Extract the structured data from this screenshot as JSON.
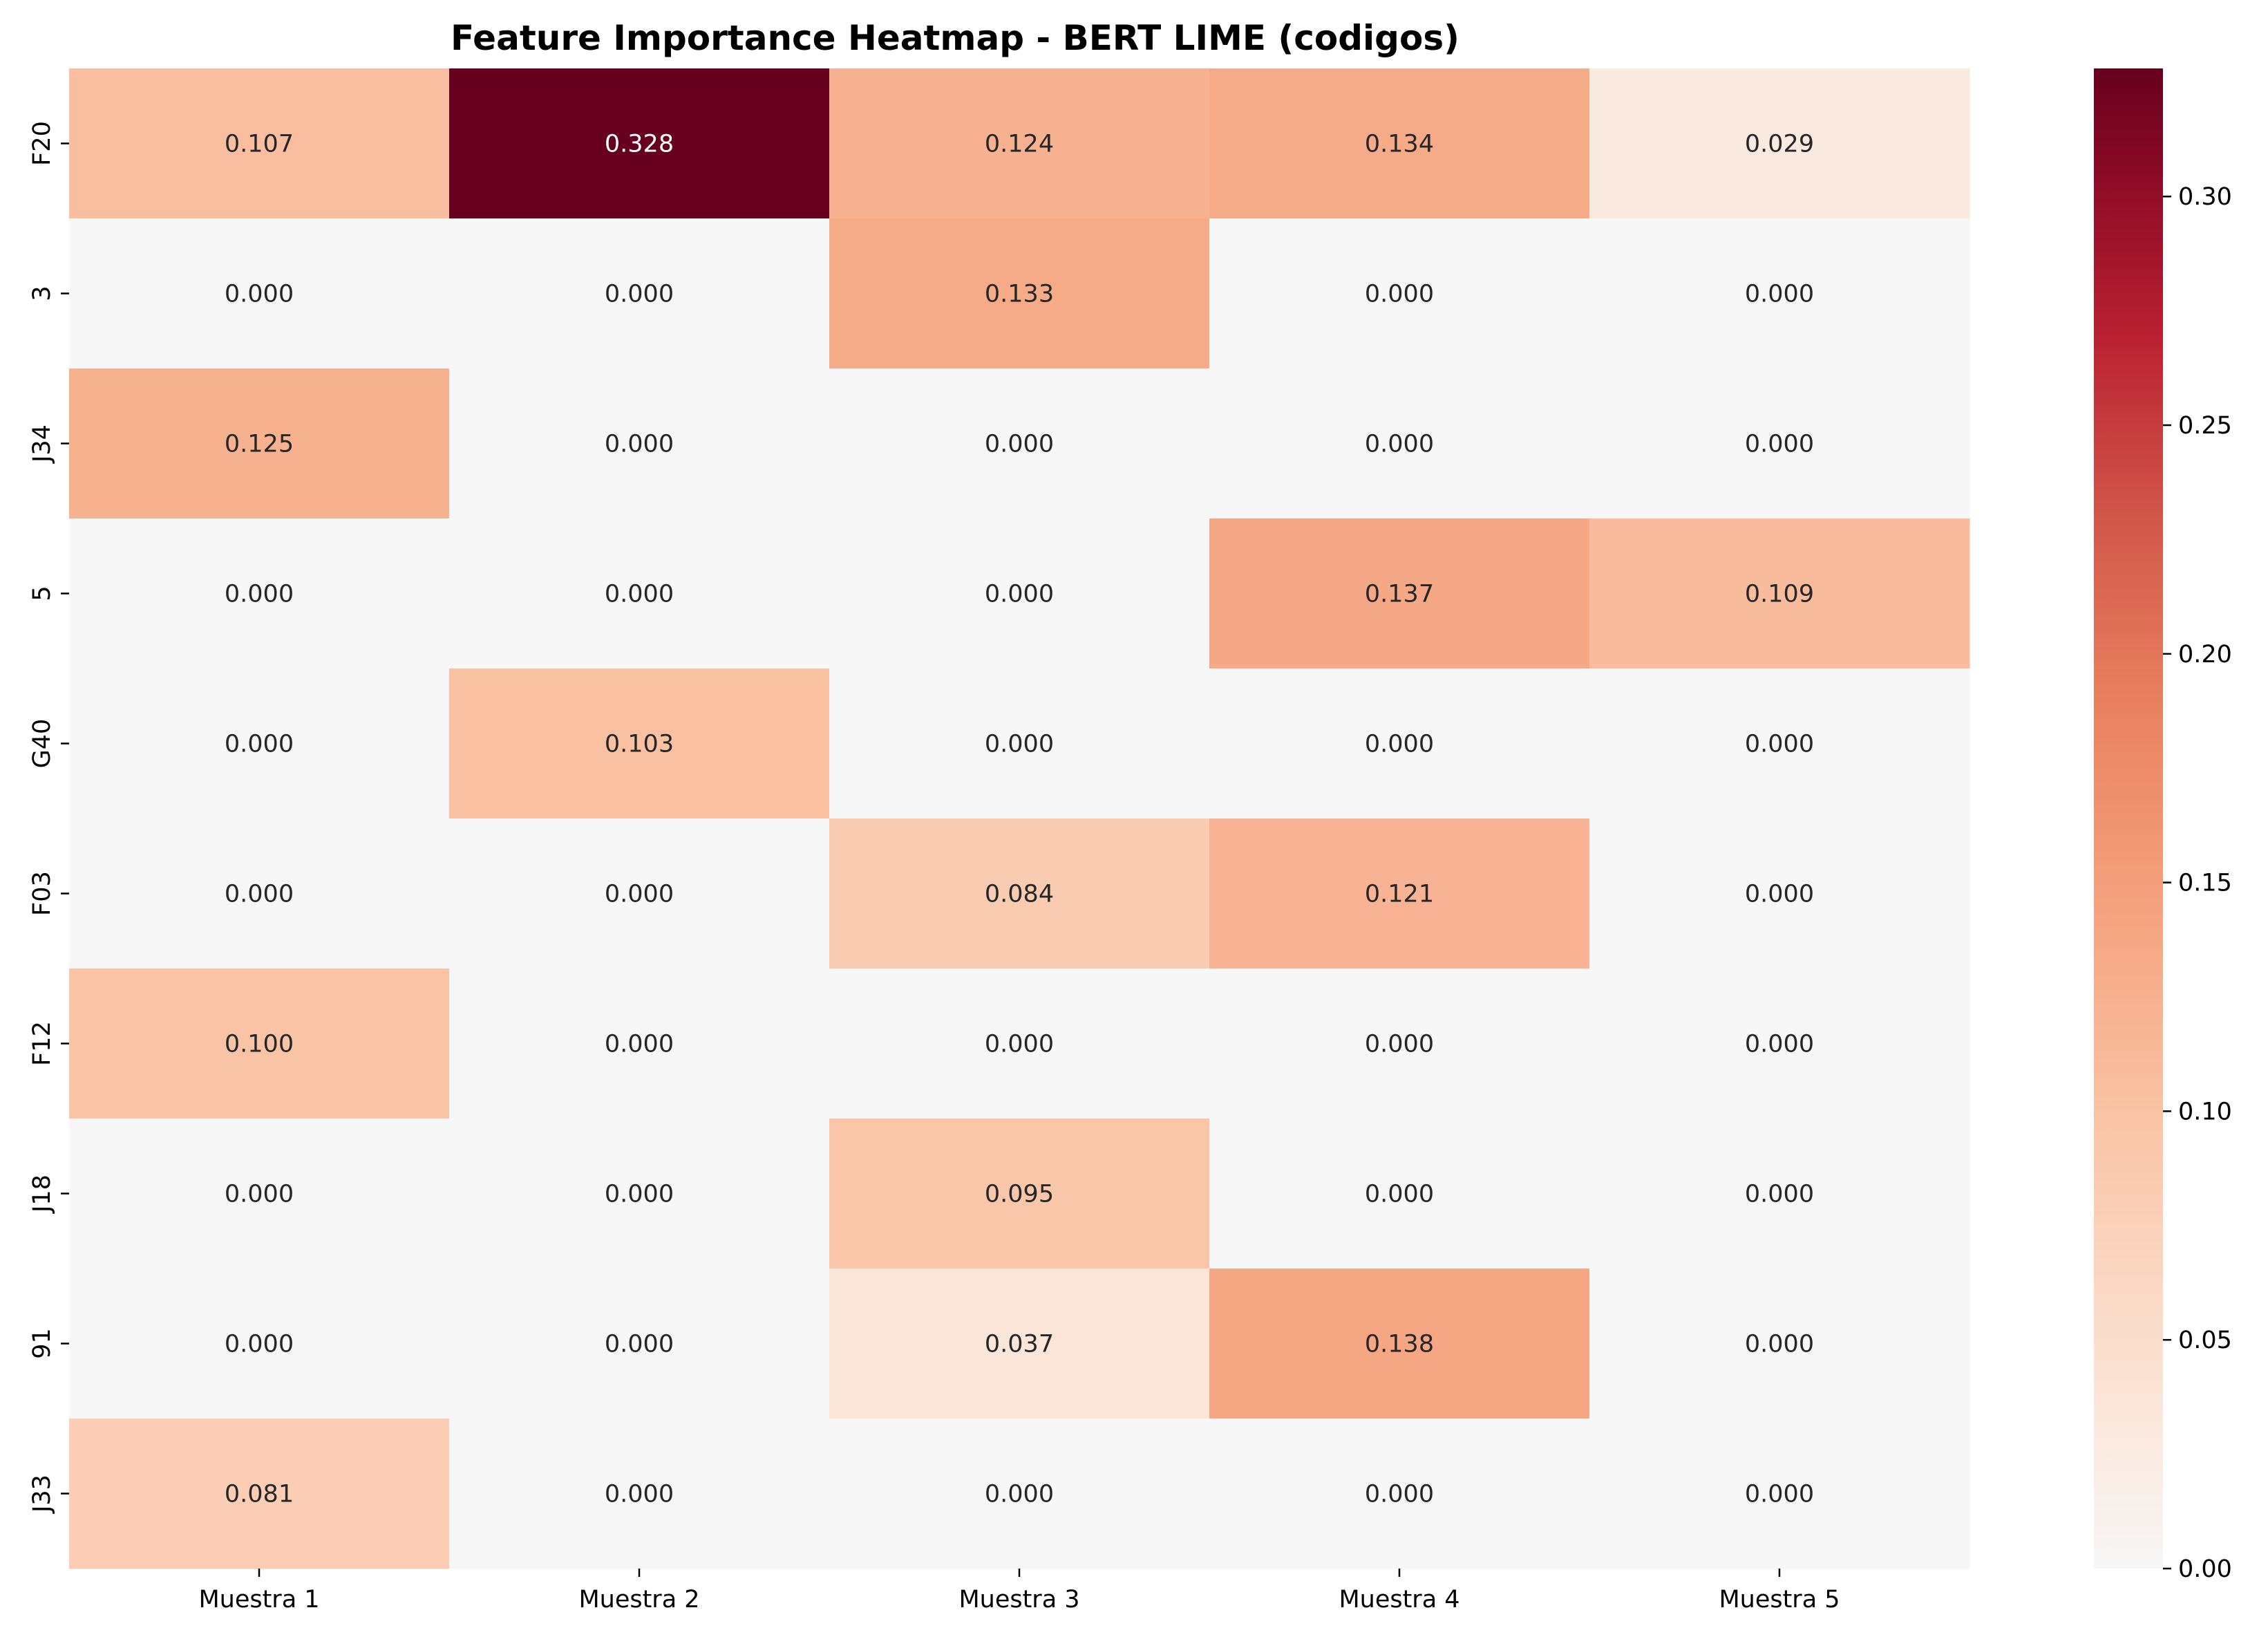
{
  "chart_data": {
    "type": "heatmap",
    "title": "Feature Importance Heatmap - BERT LIME (codigos)",
    "xlabel": "",
    "ylabel": "",
    "x_categories": [
      "Muestra 1",
      "Muestra 2",
      "Muestra 3",
      "Muestra 4",
      "Muestra 5"
    ],
    "y_categories": [
      "F20",
      "3",
      "J34",
      "5",
      "G40",
      "F03",
      "F12",
      "J18",
      "91",
      "J33"
    ],
    "values": [
      [
        0.107,
        0.328,
        0.124,
        0.134,
        0.029
      ],
      [
        0.0,
        0.0,
        0.133,
        0.0,
        0.0
      ],
      [
        0.125,
        0.0,
        0.0,
        0.0,
        0.0
      ],
      [
        0.0,
        0.0,
        0.0,
        0.137,
        0.109
      ],
      [
        0.0,
        0.103,
        0.0,
        0.0,
        0.0
      ],
      [
        0.0,
        0.0,
        0.084,
        0.121,
        0.0
      ],
      [
        0.1,
        0.0,
        0.0,
        0.0,
        0.0
      ],
      [
        0.0,
        0.0,
        0.095,
        0.0,
        0.0
      ],
      [
        0.0,
        0.0,
        0.037,
        0.138,
        0.0
      ],
      [
        0.081,
        0.0,
        0.0,
        0.0,
        0.0
      ]
    ],
    "value_labels": [
      [
        "0.107",
        "0.328",
        "0.124",
        "0.134",
        "0.029"
      ],
      [
        "0.000",
        "0.000",
        "0.133",
        "0.000",
        "0.000"
      ],
      [
        "0.125",
        "0.000",
        "0.000",
        "0.000",
        "0.000"
      ],
      [
        "0.000",
        "0.000",
        "0.000",
        "0.137",
        "0.109"
      ],
      [
        "0.000",
        "0.103",
        "0.000",
        "0.000",
        "0.000"
      ],
      [
        "0.000",
        "0.000",
        "0.084",
        "0.121",
        "0.000"
      ],
      [
        "0.100",
        "0.000",
        "0.000",
        "0.000",
        "0.000"
      ],
      [
        "0.000",
        "0.000",
        "0.095",
        "0.000",
        "0.000"
      ],
      [
        "0.000",
        "0.000",
        "0.037",
        "0.138",
        "0.000"
      ],
      [
        "0.081",
        "0.000",
        "0.000",
        "0.000",
        "0.000"
      ]
    ],
    "colormap": "RdBu_r (upper half)",
    "color_range": [
      0.0,
      0.328
    ],
    "colorbar": {
      "ticks": [
        0.0,
        0.05,
        0.1,
        0.15,
        0.2,
        0.25,
        0.3
      ],
      "tick_labels": [
        "0.00",
        "0.05",
        "0.10",
        "0.15",
        "0.20",
        "0.25",
        "0.30"
      ],
      "placement": "right"
    },
    "colors": {
      "zero": "#f5f5f5",
      "max": "#67001f",
      "label_dark": "#262626",
      "label_light": "#ffffff"
    }
  }
}
